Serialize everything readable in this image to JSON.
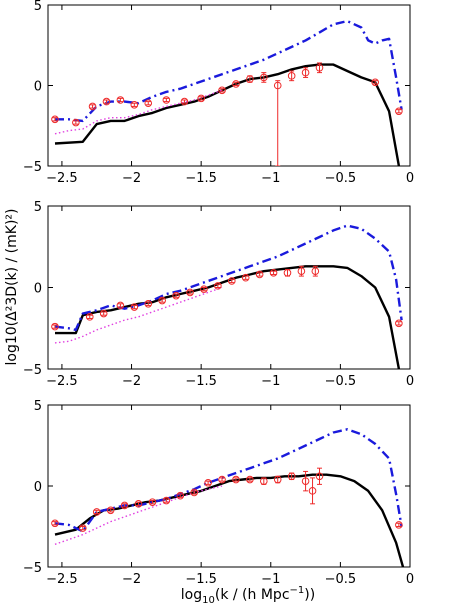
{
  "colors": {
    "solid": "#000000",
    "dashdot": "#1a1adc",
    "dotted": "#e040e0",
    "markers": "#ee2a2a"
  },
  "labels": {
    "xlabel_main": "log",
    "xlabel_sub": "10",
    "xlabel_rest": "(k / (h Mpc",
    "xlabel_sup": "−1",
    "xlabel_end": "))",
    "ylabel": "log10(Δ²3D(k) / (mK)²)"
  },
  "chart_data": [
    {
      "type": "line",
      "panel": "top",
      "xlim": [
        -2.6,
        0
      ],
      "ylim": [
        -5,
        5
      ],
      "xticks": [
        -2.5,
        -2,
        -1.5,
        -1,
        -0.5,
        0
      ],
      "xticklabels": [
        "−2.5",
        "−2",
        "−1.5",
        "−1",
        "−0.5",
        "0"
      ],
      "yticks": [
        -5,
        0,
        5
      ],
      "yticklabels": [
        "−5",
        "0",
        "5"
      ],
      "series": [
        {
          "style": "solid",
          "x": [
            -2.55,
            -2.35,
            -2.25,
            -2.15,
            -2.05,
            -1.95,
            -1.85,
            -1.75,
            -1.65,
            -1.55,
            -1.45,
            -1.35,
            -1.25,
            -1.15,
            -1.05,
            -0.95,
            -0.85,
            -0.75,
            -0.65,
            -0.55,
            -0.45,
            -0.35,
            -0.25,
            -0.15,
            -0.08
          ],
          "y": [
            -3.6,
            -3.5,
            -2.4,
            -2.2,
            -2.2,
            -1.9,
            -1.7,
            -1.4,
            -1.2,
            -1.0,
            -0.7,
            -0.3,
            0.1,
            0.4,
            0.5,
            0.7,
            1.0,
            1.2,
            1.3,
            1.3,
            0.9,
            0.5,
            0.2,
            -1.6,
            -5.0
          ]
        },
        {
          "style": "dashdot",
          "x": [
            -2.55,
            -2.45,
            -2.35,
            -2.25,
            -2.15,
            -2.05,
            -1.95,
            -1.85,
            -1.75,
            -1.65,
            -1.55,
            -1.45,
            -1.35,
            -1.25,
            -1.15,
            -1.05,
            -0.95,
            -0.85,
            -0.75,
            -0.65,
            -0.55,
            -0.45,
            -0.35,
            -0.3,
            -0.25,
            -0.2,
            -0.15,
            -0.1,
            -0.06
          ],
          "y": [
            -2.1,
            -2.1,
            -2.2,
            -1.3,
            -1.0,
            -1.0,
            -1.1,
            -0.7,
            -0.4,
            -0.2,
            0.1,
            0.4,
            0.7,
            1.0,
            1.3,
            1.6,
            2.0,
            2.4,
            2.8,
            3.3,
            3.8,
            4.0,
            3.6,
            2.8,
            2.6,
            2.8,
            2.9,
            0.5,
            -1.5
          ]
        },
        {
          "style": "dotted",
          "x": [
            -2.55,
            -2.45,
            -2.35,
            -2.25,
            -2.15,
            -2.05,
            -1.95,
            -1.85,
            -1.75,
            -1.65,
            -1.55,
            -1.45,
            -1.35
          ],
          "y": [
            -3.0,
            -2.8,
            -2.7,
            -2.2,
            -2.0,
            -2.0,
            -1.8,
            -1.5,
            -1.3,
            -1.1,
            -0.9,
            -0.6,
            -0.3
          ]
        }
      ],
      "markers": {
        "x": [
          -2.55,
          -2.4,
          -2.28,
          -2.18,
          -2.08,
          -1.98,
          -1.88,
          -1.75,
          -1.62,
          -1.5,
          -1.35,
          -1.25,
          -1.15,
          -1.05,
          -0.95,
          -0.85,
          -0.75,
          -0.65,
          -0.25,
          -0.08
        ],
        "y": [
          -2.1,
          -2.3,
          -1.3,
          -1.0,
          -0.9,
          -1.2,
          -1.1,
          -0.9,
          -1.0,
          -0.8,
          -0.3,
          0.1,
          0.4,
          0.5,
          0.0,
          0.6,
          0.8,
          1.1,
          0.2,
          -1.6
        ],
        "err_lo": [
          0.1,
          0.1,
          0.1,
          0.1,
          0.1,
          0.1,
          0.1,
          0.1,
          0.1,
          0.1,
          0.1,
          0.1,
          0.2,
          0.3,
          5.0,
          0.3,
          0.3,
          0.3,
          0.1,
          0.1
        ],
        "err_hi": [
          0.1,
          0.1,
          0.1,
          0.1,
          0.1,
          0.1,
          0.1,
          0.1,
          0.1,
          0.1,
          0.1,
          0.1,
          0.2,
          0.3,
          0.3,
          0.3,
          0.3,
          0.3,
          0.1,
          0.1
        ]
      }
    },
    {
      "type": "line",
      "panel": "middle",
      "xlim": [
        -2.6,
        0
      ],
      "ylim": [
        -5,
        5
      ],
      "xticks": [
        -2.5,
        -2,
        -1.5,
        -1,
        -0.5,
        0
      ],
      "xticklabels": [
        "−2.5",
        "−2",
        "−1.5",
        "−1",
        "−0.5",
        "0"
      ],
      "yticks": [
        -5,
        0,
        5
      ],
      "yticklabels": [
        "−5",
        "0",
        "5"
      ],
      "series": [
        {
          "style": "solid",
          "x": [
            -2.55,
            -2.45,
            -2.4,
            -2.35,
            -2.25,
            -2.15,
            -2.05,
            -1.95,
            -1.85,
            -1.75,
            -1.65,
            -1.55,
            -1.45,
            -1.35,
            -1.25,
            -1.15,
            -1.05,
            -0.95,
            -0.85,
            -0.75,
            -0.65,
            -0.55,
            -0.45,
            -0.35,
            -0.25,
            -0.15,
            -0.08
          ],
          "y": [
            -2.8,
            -2.8,
            -2.8,
            -1.7,
            -1.5,
            -1.4,
            -1.2,
            -1.0,
            -0.9,
            -0.6,
            -0.4,
            -0.2,
            0.0,
            0.3,
            0.6,
            0.8,
            1.0,
            1.1,
            1.2,
            1.3,
            1.3,
            1.3,
            1.2,
            0.7,
            0.0,
            -1.8,
            -5.0
          ]
        },
        {
          "style": "dashdot",
          "x": [
            -2.55,
            -2.45,
            -2.4,
            -2.35,
            -2.25,
            -2.15,
            -2.05,
            -1.95,
            -1.85,
            -1.75,
            -1.65,
            -1.55,
            -1.45,
            -1.35,
            -1.25,
            -1.15,
            -1.05,
            -0.95,
            -0.85,
            -0.75,
            -0.65,
            -0.55,
            -0.45,
            -0.35,
            -0.25,
            -0.15,
            -0.1,
            -0.06
          ],
          "y": [
            -2.4,
            -2.5,
            -2.6,
            -1.6,
            -1.4,
            -1.1,
            -1.3,
            -1.1,
            -0.8,
            -0.4,
            -0.2,
            0.1,
            0.4,
            0.7,
            1.0,
            1.3,
            1.6,
            1.9,
            2.3,
            2.7,
            3.1,
            3.5,
            3.8,
            3.6,
            3.0,
            2.2,
            0.5,
            -2.0
          ]
        },
        {
          "style": "dotted",
          "x": [
            -2.55,
            -2.45,
            -2.35,
            -2.25,
            -2.15,
            -2.05,
            -1.95,
            -1.85,
            -1.75,
            -1.65,
            -1.55,
            -1.45,
            -1.35
          ],
          "y": [
            -3.4,
            -3.3,
            -3.0,
            -2.6,
            -2.3,
            -2.0,
            -1.8,
            -1.5,
            -1.2,
            -0.9,
            -0.6,
            -0.3,
            0.0
          ]
        }
      ],
      "markers": {
        "x": [
          -2.55,
          -2.3,
          -2.2,
          -2.08,
          -1.98,
          -1.88,
          -1.78,
          -1.68,
          -1.58,
          -1.48,
          -1.38,
          -1.28,
          -1.18,
          -1.08,
          -0.98,
          -0.88,
          -0.78,
          -0.68,
          -0.08
        ],
        "y": [
          -2.4,
          -1.8,
          -1.6,
          -1.1,
          -1.2,
          -1.0,
          -0.8,
          -0.5,
          -0.3,
          -0.1,
          0.1,
          0.4,
          0.6,
          0.8,
          0.9,
          0.9,
          1.0,
          1.0,
          -2.2
        ],
        "err_lo": [
          0.1,
          0.1,
          0.1,
          0.1,
          0.1,
          0.1,
          0.1,
          0.1,
          0.1,
          0.1,
          0.1,
          0.1,
          0.1,
          0.1,
          0.1,
          0.2,
          0.3,
          0.3,
          0.1
        ],
        "err_hi": [
          0.1,
          0.1,
          0.1,
          0.1,
          0.1,
          0.1,
          0.1,
          0.1,
          0.1,
          0.1,
          0.1,
          0.1,
          0.1,
          0.1,
          0.1,
          0.2,
          0.3,
          0.3,
          0.1
        ]
      }
    },
    {
      "type": "line",
      "panel": "bottom",
      "xlim": [
        -2.6,
        0
      ],
      "ylim": [
        -5,
        5
      ],
      "xticks": [
        -2.5,
        -2,
        -1.5,
        -1,
        -0.5,
        0
      ],
      "xticklabels": [
        "−2.5",
        "−2",
        "−1.5",
        "−1",
        "−0.5",
        "0"
      ],
      "yticks": [
        -5,
        0,
        5
      ],
      "yticklabels": [
        "−5",
        "0",
        "5"
      ],
      "series": [
        {
          "style": "solid",
          "x": [
            -2.55,
            -2.4,
            -2.3,
            -2.2,
            -2.1,
            -2.0,
            -1.9,
            -1.8,
            -1.7,
            -1.6,
            -1.5,
            -1.4,
            -1.3,
            -1.2,
            -1.1,
            -1.0,
            -0.9,
            -0.8,
            -0.7,
            -0.6,
            -0.5,
            -0.4,
            -0.3,
            -0.2,
            -0.1,
            -0.05
          ],
          "y": [
            -3.0,
            -2.7,
            -2.0,
            -1.5,
            -1.4,
            -1.2,
            -1.0,
            -0.9,
            -0.7,
            -0.5,
            -0.3,
            0.0,
            0.3,
            0.4,
            0.5,
            0.5,
            0.6,
            0.6,
            0.7,
            0.7,
            0.6,
            0.3,
            -0.3,
            -1.5,
            -3.5,
            -5.0
          ]
        },
        {
          "style": "dashdot",
          "x": [
            -2.55,
            -2.45,
            -2.35,
            -2.25,
            -2.15,
            -2.05,
            -1.95,
            -1.85,
            -1.75,
            -1.65,
            -1.55,
            -1.45,
            -1.35,
            -1.25,
            -1.15,
            -1.05,
            -0.95,
            -0.85,
            -0.75,
            -0.65,
            -0.55,
            -0.45,
            -0.35,
            -0.25,
            -0.15,
            -0.1,
            -0.06
          ],
          "y": [
            -2.3,
            -2.4,
            -2.8,
            -1.6,
            -1.4,
            -1.2,
            -1.2,
            -1.0,
            -0.8,
            -0.5,
            -0.2,
            0.2,
            0.5,
            0.8,
            1.1,
            1.4,
            1.7,
            2.1,
            2.5,
            2.9,
            3.3,
            3.5,
            3.2,
            2.6,
            1.7,
            -0.5,
            -2.5
          ]
        },
        {
          "style": "dotted",
          "x": [
            -2.55,
            -2.45,
            -2.35,
            -2.25,
            -2.15,
            -2.05,
            -1.95,
            -1.85,
            -1.75,
            -1.65,
            -1.55,
            -1.45,
            -1.35
          ],
          "y": [
            -3.6,
            -3.3,
            -3.0,
            -2.6,
            -2.2,
            -1.9,
            -1.6,
            -1.3,
            -1.0,
            -0.7,
            -0.4,
            -0.2,
            0.0
          ]
        }
      ],
      "markers": {
        "x": [
          -2.55,
          -2.35,
          -2.25,
          -2.15,
          -2.05,
          -1.95,
          -1.85,
          -1.75,
          -1.65,
          -1.55,
          -1.45,
          -1.35,
          -1.25,
          -1.15,
          -1.05,
          -0.95,
          -0.85,
          -0.75,
          -0.7,
          -0.65,
          -0.08
        ],
        "y": [
          -2.3,
          -2.6,
          -1.6,
          -1.5,
          -1.2,
          -1.1,
          -1.0,
          -0.9,
          -0.6,
          -0.4,
          0.2,
          0.4,
          0.4,
          0.4,
          0.3,
          0.4,
          0.6,
          0.3,
          -0.3,
          0.6,
          -2.4
        ],
        "err_lo": [
          0.1,
          0.1,
          0.1,
          0.1,
          0.1,
          0.1,
          0.1,
          0.1,
          0.1,
          0.1,
          0.1,
          0.1,
          0.1,
          0.1,
          0.2,
          0.2,
          0.2,
          0.6,
          0.8,
          0.5,
          0.1
        ],
        "err_hi": [
          0.1,
          0.1,
          0.1,
          0.1,
          0.1,
          0.1,
          0.1,
          0.1,
          0.1,
          0.1,
          0.1,
          0.1,
          0.1,
          0.1,
          0.2,
          0.2,
          0.2,
          0.6,
          0.8,
          0.5,
          0.1
        ]
      }
    }
  ]
}
